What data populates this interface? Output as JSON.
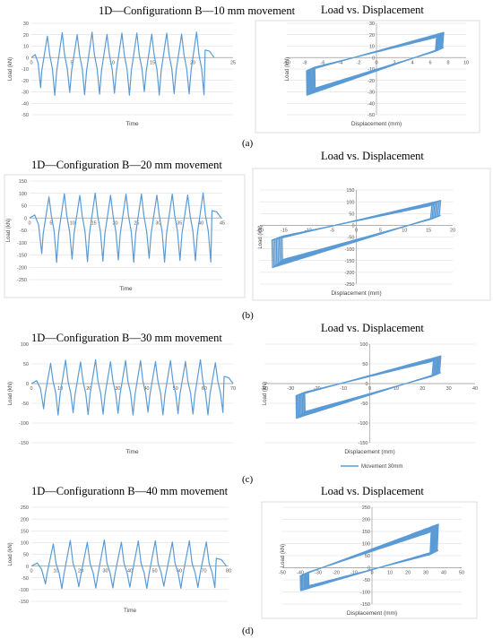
{
  "chart_data": [
    {
      "type": "line",
      "title": "1D—Configurationn B—10 mm movement",
      "xlabel": "Time",
      "ylabel": "Load (kN)",
      "xlim": [
        0,
        25
      ],
      "ylim": [
        -50,
        30
      ],
      "xticks": [
        0,
        5,
        10,
        15,
        20,
        25
      ],
      "yticks": [
        30,
        20,
        10,
        0,
        -10,
        -20,
        -30,
        -40,
        -50
      ],
      "color": "#5b9bd5",
      "peaks": {
        "x0": 1.2,
        "period": 1.85,
        "count": 11,
        "max": 22,
        "min": -33
      },
      "x": [
        0,
        0.6,
        1.0,
        1.5,
        2.0,
        2.5,
        3.0,
        3.3
      ],
      "y": [
        0,
        1,
        2,
        -5,
        -27,
        -3,
        18,
        20
      ]
    },
    {
      "type": "line",
      "title": "Load vs. Displacement",
      "xlabel": "Displacement (mm)",
      "ylabel": "Load (kN)",
      "xlim": [
        -10,
        10
      ],
      "ylim": [
        -50,
        30
      ],
      "xticks": [
        -10,
        -8,
        -6,
        -4,
        -2,
        0,
        2,
        4,
        6,
        8,
        10
      ],
      "yticks": [
        30,
        20,
        10,
        0,
        -10,
        -20,
        -30,
        -40,
        -50
      ],
      "color": "#5b9bd5",
      "loop": {
        "xmin": -7.8,
        "xmax": 7.5,
        "ymax": 22,
        "ymin": -33
      },
      "x": [],
      "y": []
    },
    {
      "type": "line",
      "title": "1D—Configuration B—20 mm movement",
      "xlabel": "Time",
      "ylabel": "Load (kN)",
      "xlim": [
        0,
        45
      ],
      "ylim": [
        -250,
        150
      ],
      "xticks": [
        0,
        5,
        10,
        15,
        20,
        25,
        30,
        35,
        40,
        45
      ],
      "yticks": [
        150,
        100,
        50,
        0,
        -50,
        -100,
        -150,
        -200,
        -250
      ],
      "color": "#5b9bd5",
      "peaks": {
        "x0": 3.0,
        "period": 3.6,
        "count": 11,
        "max": 100,
        "min": -180
      },
      "x": [],
      "y": []
    },
    {
      "type": "line",
      "title": "Load vs. Displacement",
      "xlabel": "Displacement (mm)",
      "ylabel": "Load (kN)",
      "xlim": [
        -20,
        20
      ],
      "ylim": [
        -250,
        150
      ],
      "xticks": [
        -20,
        -15,
        -10,
        -5,
        0,
        5,
        10,
        15,
        20
      ],
      "yticks": [
        150,
        100,
        50,
        0,
        -50,
        -100,
        -150,
        -200,
        -250
      ],
      "color": "#5b9bd5",
      "loop": {
        "xmin": -17.5,
        "xmax": 17.5,
        "ymax": 105,
        "ymin": -180
      },
      "x": [],
      "y": []
    },
    {
      "type": "line",
      "title": "1D—Configuration B—30 mm movement",
      "xlabel": "Time",
      "ylabel": "Load (kN)",
      "xlim": [
        0,
        70
      ],
      "ylim": [
        -150,
        100
      ],
      "xticks": [
        0,
        10,
        20,
        30,
        40,
        50,
        60,
        70
      ],
      "yticks": [
        100,
        50,
        0,
        -50,
        -100,
        -150
      ],
      "color": "#5b9bd5",
      "peaks": {
        "x0": 4.5,
        "period": 5.2,
        "count": 12,
        "max": 60,
        "min": -80
      },
      "x": [],
      "y": []
    },
    {
      "type": "line",
      "title": "Load vs. Displacement",
      "xlabel": "Displacement (mm)",
      "ylabel": "Load (kN)",
      "xlim": [
        -40,
        40
      ],
      "ylim": [
        -150,
        100
      ],
      "xticks": [
        -40,
        -30,
        -20,
        -10,
        0,
        10,
        20,
        30,
        40
      ],
      "yticks": [
        100,
        50,
        0,
        -50,
        -100,
        -150
      ],
      "legend": "Movement 30mm",
      "legend_position": "bottom",
      "color": "#5b9bd5",
      "loop": {
        "xmin": -28,
        "xmax": 27,
        "ymax": 70,
        "ymin": -88
      },
      "x": [],
      "y": []
    },
    {
      "type": "line",
      "title": "1D—Configurationn B—40 mm movement",
      "xlabel": "Time",
      "ylabel": "Load (kN)",
      "xlim": [
        0,
        80
      ],
      "ylim": [
        -150,
        250
      ],
      "xticks": [
        0,
        10,
        20,
        30,
        40,
        50,
        60,
        70,
        80
      ],
      "yticks": [
        250,
        200,
        150,
        100,
        50,
        0,
        -50,
        -100,
        -150
      ],
      "color": "#5b9bd5",
      "peaks": {
        "x0": 6,
        "period": 6.9,
        "count": 10,
        "max": 110,
        "min": -95
      },
      "x": [],
      "y": []
    },
    {
      "type": "line",
      "title": "Load vs. Displacement",
      "xlabel": "Displacement (mm)",
      "ylabel": "Load (kN)",
      "xlim": [
        -50,
        50
      ],
      "ylim": [
        -150,
        250
      ],
      "xticks": [
        -50,
        -40,
        -30,
        -20,
        -10,
        0,
        10,
        20,
        30,
        40,
        50
      ],
      "yticks": [
        250,
        200,
        150,
        100,
        50,
        0,
        -50,
        -100,
        -150
      ],
      "color": "#5b9bd5",
      "loop": {
        "xmin": -40,
        "xmax": 37,
        "ymax": 180,
        "ymin": -95
      },
      "x": [],
      "y": []
    }
  ],
  "subfigure_labels": [
    "(a)",
    "(b)",
    "(c)",
    "(d)"
  ]
}
